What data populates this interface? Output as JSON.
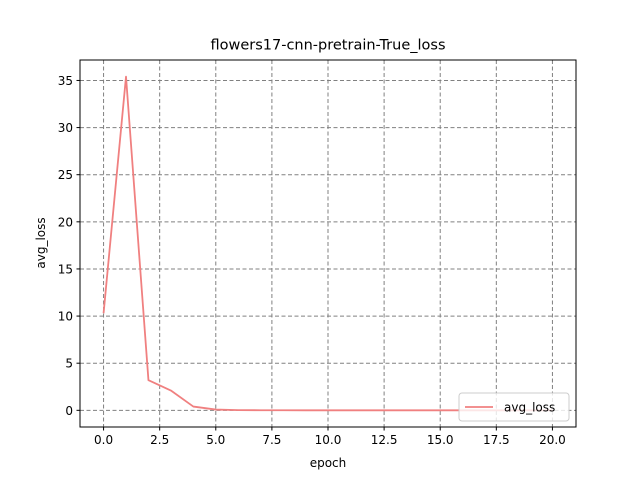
{
  "chart_data": {
    "type": "line",
    "title": "flowers17-cnn-pretrain-True_loss",
    "xlabel": "epoch",
    "ylabel": "avg_loss",
    "xlim": [
      -1.05,
      21.05
    ],
    "ylim": [
      -1.77,
      37.17
    ],
    "xticks": [
      0.0,
      2.5,
      5.0,
      7.5,
      10.0,
      12.5,
      15.0,
      17.5,
      20.0
    ],
    "xtick_labels": [
      "0.0",
      "2.5",
      "5.0",
      "7.5",
      "10.0",
      "12.5",
      "15.0",
      "17.5",
      "20.0"
    ],
    "yticks": [
      0,
      5,
      10,
      15,
      20,
      25,
      30,
      35
    ],
    "ytick_labels": [
      "0",
      "5",
      "10",
      "15",
      "20",
      "25",
      "30",
      "35"
    ],
    "grid": true,
    "grid_style": "dashed",
    "legend_position": "lower right",
    "series": [
      {
        "name": "avg_loss",
        "color": "#f08080",
        "x": [
          0,
          1,
          2,
          3,
          4,
          5,
          6,
          7,
          8,
          9,
          10,
          11,
          12,
          13,
          14,
          15,
          16,
          17,
          18,
          19,
          20
        ],
        "y": [
          10.3,
          35.4,
          3.2,
          2.1,
          0.4,
          0.08,
          0.02,
          0.01,
          0.01,
          0.0,
          0.0,
          0.0,
          0.0,
          0.0,
          0.0,
          0.0,
          0.0,
          0.0,
          0.0,
          0.0,
          0.0
        ]
      }
    ]
  }
}
